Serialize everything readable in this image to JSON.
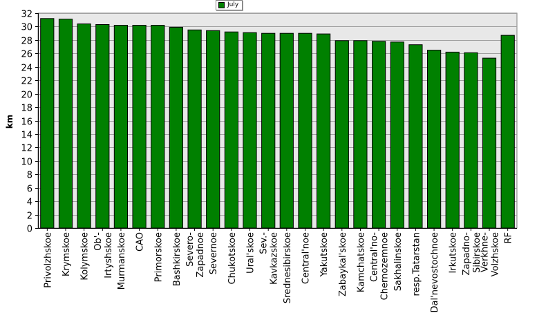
{
  "chart_data": {
    "type": "bar",
    "ylabel": "km",
    "ylim": [
      0,
      32
    ],
    "ytick_step": 2,
    "grid": true,
    "legend_position": "top-center",
    "categories": [
      "Privolzhskoe",
      "Krymskoe",
      "Kolymskoe",
      "Ob'-\nIrtyshskoe",
      "Murmanskoe",
      "CAO",
      "Primorskoe",
      "Bashkirskoe",
      "Severo-\nZapadnoe",
      "Severnoe",
      "Chukotskoe",
      "Ural'skoe",
      "Sev.-\nKavkazskoe",
      "Srednesibirskoe",
      "Central'noe",
      "Yakutskoe",
      "Zabaykal'skoe",
      "Kamchatskoe",
      "Central'no-\nChernozemnoe",
      "Sakhalinskoe",
      "resp.Tatarstan",
      "Dal'nevostochnoe",
      "Irkutskoe",
      "Zapadno-\nSibirskoe",
      "Verkhne-\nVolzhskoe",
      "RF"
    ],
    "series": [
      {
        "name": "July",
        "color": "#008000",
        "values": [
          31.2,
          31.1,
          30.4,
          30.3,
          30.2,
          30.2,
          30.2,
          29.9,
          29.5,
          29.4,
          29.2,
          29.1,
          29.0,
          29.0,
          29.0,
          28.9,
          27.9,
          27.9,
          27.8,
          27.7,
          27.3,
          26.5,
          26.2,
          26.1,
          25.3,
          28.7
        ]
      }
    ],
    "colors": {
      "plot_background": "#e8e8e8",
      "bar_fill": "#008000",
      "grid": "#a0a0a0"
    }
  }
}
